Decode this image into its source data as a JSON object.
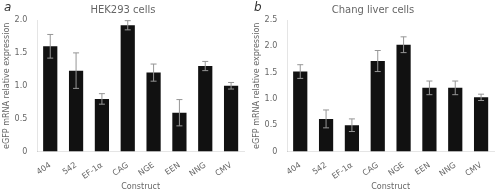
{
  "chart_data": [
    {
      "type": "bar",
      "title": "HEK293 cells",
      "annotations": [
        "a"
      ],
      "categories": [
        "404",
        "542",
        "EF-1α",
        "CAG",
        "NGE",
        "EEN",
        "NNG",
        "CMV"
      ],
      "values": [
        1.6,
        1.23,
        0.8,
        1.92,
        1.2,
        0.59,
        1.3,
        1.0
      ],
      "errors": [
        0.18,
        0.27,
        0.08,
        0.07,
        0.13,
        0.2,
        0.07,
        0.05
      ],
      "color": "#111111",
      "ylim": [
        0,
        2.0
      ],
      "yticks": [
        0,
        0.5,
        {
          "value": 1.0,
          "label": "1.0"
        },
        1.5,
        {
          "value": 2.0,
          "label": "2.0"
        }
      ],
      "ylabel": "eGFP mRNA relative expression",
      "xlabel": "Construct",
      "grid": false
    },
    {
      "type": "bar",
      "title": "Chang liver cells",
      "annotations": [
        "b"
      ],
      "categories": [
        "404",
        "542",
        "EF-1α",
        "CAG",
        "NGE",
        "EEN",
        "NNG",
        "CMV"
      ],
      "values": [
        1.52,
        0.62,
        0.5,
        1.72,
        2.03,
        1.21,
        1.21,
        1.03
      ],
      "errors": [
        0.13,
        0.17,
        0.12,
        0.2,
        0.15,
        0.13,
        0.13,
        0.06
      ],
      "color": "#111111",
      "ylim": [
        0,
        2.5
      ],
      "yticks": [
        0,
        0.5,
        {
          "value": 1.0,
          "label": "1.0"
        },
        1.5,
        {
          "value": 2.0,
          "label": "2.0"
        },
        {
          "value": 2.5,
          "label": "2.5"
        }
      ],
      "ylabel": "eGFP mRNA relative expression",
      "xlabel": "Construct",
      "grid": false
    }
  ]
}
